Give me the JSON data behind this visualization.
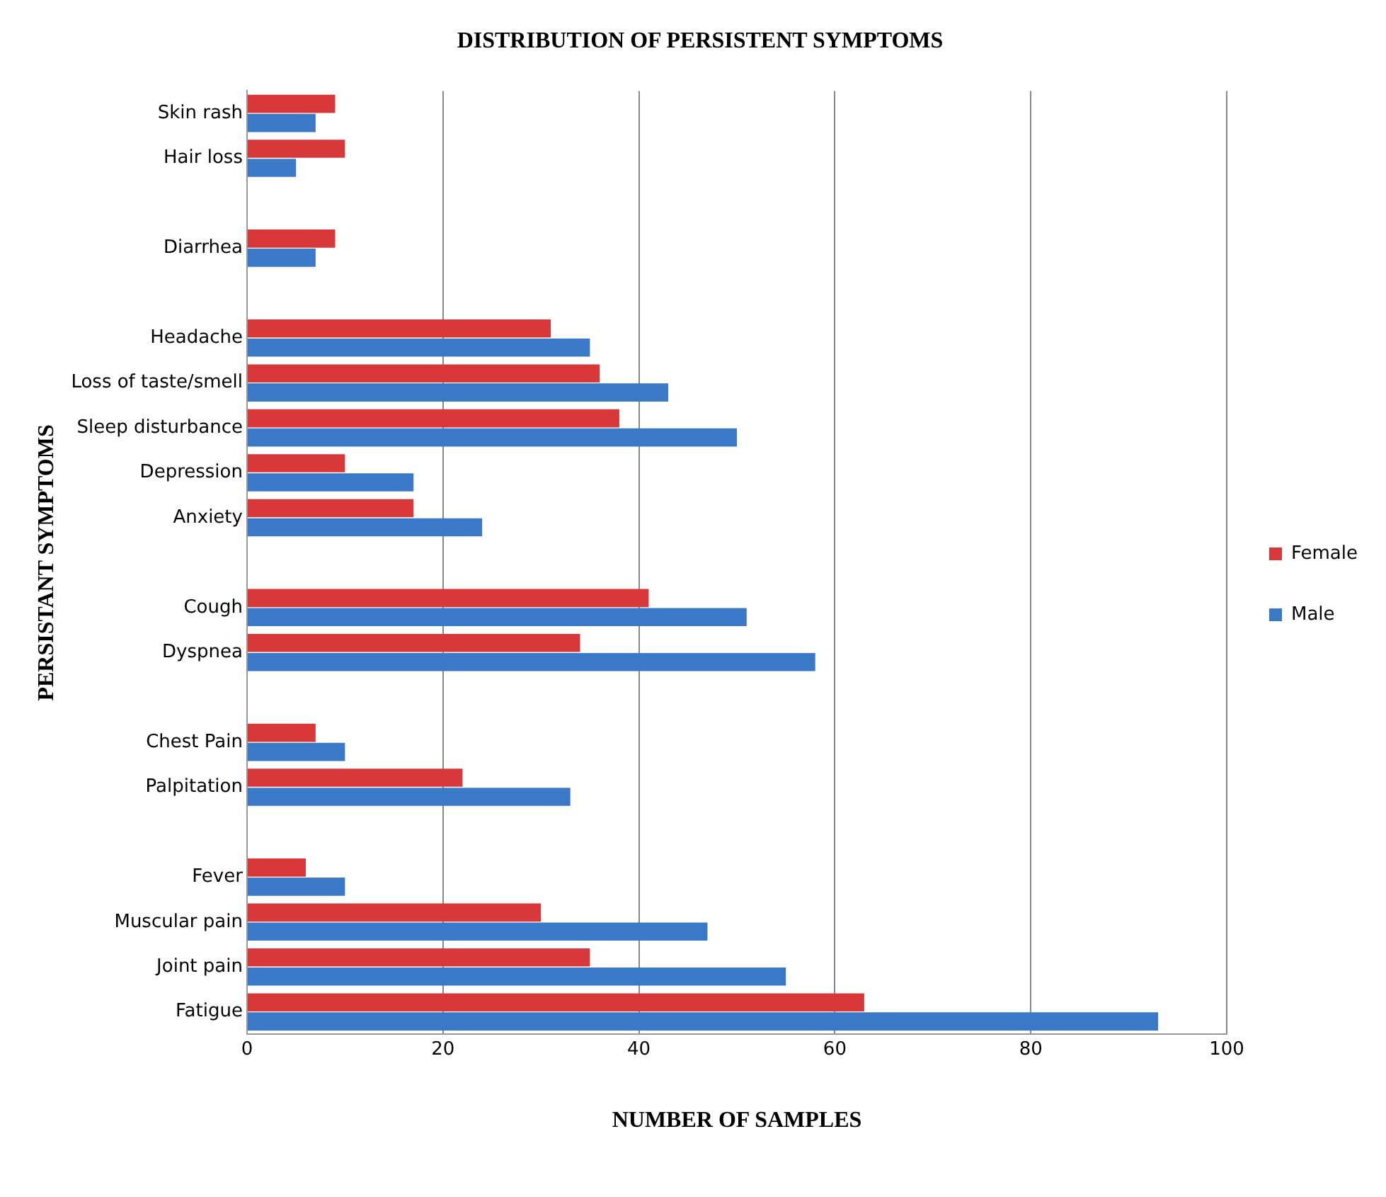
{
  "chart_data": {
    "type": "bar",
    "orientation": "horizontal",
    "title": "DISTRIBUTION OF PERSISTENT SYMPTOMS",
    "xlabel": "NUMBER OF SAMPLES",
    "ylabel": "PERSISTANT SYMPTOMS",
    "categories": [
      "Skin rash",
      "Hair loss",
      null,
      "Diarrhea",
      null,
      "Headache",
      "Loss of taste/smell",
      "Sleep disturbance",
      "Depression",
      "Anxiety",
      null,
      "Cough",
      "Dyspnea",
      null,
      "Chest Pain",
      "Palpitation",
      null,
      "Fever",
      "Muscular pain",
      "Joint pain",
      "Fatigue"
    ],
    "series": [
      {
        "name": "Female",
        "color": "#d9383a",
        "values": [
          9,
          10,
          null,
          9,
          null,
          31,
          36,
          38,
          10,
          17,
          null,
          41,
          34,
          null,
          7,
          22,
          null,
          6,
          30,
          35,
          63
        ]
      },
      {
        "name": "Male",
        "color": "#3a78c8",
        "values": [
          7,
          5,
          null,
          7,
          null,
          35,
          43,
          50,
          17,
          24,
          null,
          51,
          58,
          null,
          10,
          33,
          null,
          10,
          47,
          55,
          93
        ]
      }
    ],
    "xlim": [
      0,
      100
    ],
    "xticks": [
      0,
      20,
      40,
      60,
      80,
      100
    ],
    "grid": "x",
    "legend": "right"
  }
}
